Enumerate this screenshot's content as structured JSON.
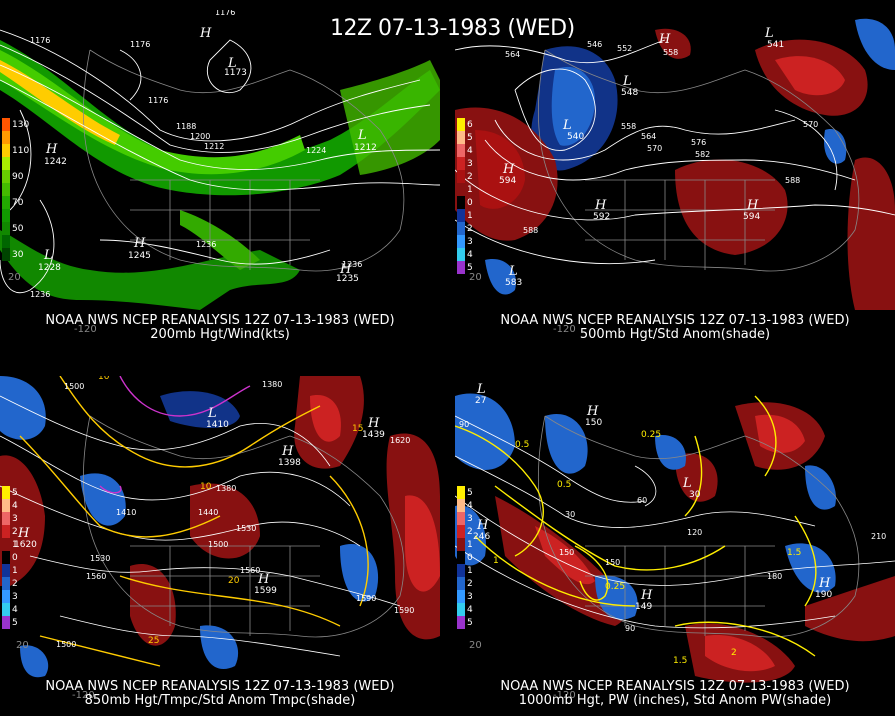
{
  "title": "12Z 07-13-1983 (WED)",
  "panels": {
    "p1": {
      "caption_line1": "NOAA NWS NCEP REANALYSIS 12Z 07-13-1983 (WED)",
      "caption_line2": "200mb Hgt/Wind(kts)",
      "lon_tick": "-120",
      "lat_tick": "20",
      "legend": [
        "130",
        "110",
        "90",
        "70",
        "50",
        "30"
      ],
      "legend_colors": [
        "#ff9900",
        "#ffcc00",
        "#aaee00",
        "#55cc00",
        "#22aa00",
        "#118800"
      ],
      "contours": [
        "1176",
        "1188",
        "1200",
        "1212",
        "1224",
        "1236"
      ],
      "extrema": [
        "H",
        "H",
        "L",
        "L",
        "H",
        "L",
        "H",
        "L",
        "L"
      ],
      "extrema_values": [
        "1242",
        "1245",
        "1228",
        "1236",
        "1212",
        "1176",
        "1173",
        "1176",
        "1235"
      ]
    },
    "p2": {
      "caption_line1": "NOAA NWS NCEP REANALYSIS 12Z 07-13-1983 (WED)",
      "caption_line2": "500mb Hgt/Std Anom(shade)",
      "lon_tick": "-120",
      "lat_tick": "20",
      "legend": [
        "6",
        "5",
        "4",
        "3",
        "2",
        "1",
        "0",
        "1",
        "2",
        "3",
        "4",
        "5"
      ],
      "legend_colors": [
        "#ffee00",
        "#ffbb88",
        "#ee6666",
        "#cc2222",
        "#aa1111",
        "#881111",
        "#000000",
        "#113399",
        "#2266cc",
        "#3399ff",
        "#33ccee",
        "#9933cc"
      ],
      "contours": [
        "546",
        "552",
        "558",
        "564",
        "570",
        "576",
        "582",
        "588"
      ],
      "extrema": [
        "L",
        "L",
        "H",
        "H",
        "H",
        "L",
        "H",
        "L"
      ],
      "extrema_values": [
        "540",
        "548",
        "594",
        "592",
        "594",
        "583",
        "562",
        "541"
      ]
    },
    "p3": {
      "caption_line1": "NOAA NWS NCEP REANALYSIS 12Z 07-13-1983 (WED)",
      "caption_line2": "850mb Hgt/Tmpc/Std Anom Tmpc(shade)",
      "lon_tick": "-120",
      "lat_tick": "20",
      "legend": [
        "5",
        "4",
        "3",
        "2",
        "1",
        "0",
        "1",
        "2",
        "3",
        "4",
        "5"
      ],
      "contours": [
        "1380",
        "1410",
        "1440",
        "1470",
        "1500",
        "1530",
        "1560",
        "1590",
        "1620"
      ],
      "temps": [
        "10",
        "15",
        "20",
        "25"
      ],
      "extrema": [
        "H",
        "H",
        "H",
        "L",
        "H"
      ],
      "extrema_values": [
        "1620",
        "1599",
        "1439",
        "1410",
        "1398"
      ]
    },
    "p4": {
      "caption_line1": "NOAA NWS NCEP REANALYSIS 12Z 07-13-1983 (WED)",
      "caption_line2": "1000mb Hgt, PW (inches), Std Anom PW(shade)",
      "lon_tick": "-120",
      "lat_tick": "20",
      "legend": [
        "5",
        "4",
        "3",
        "2",
        "1",
        "0",
        "1",
        "2",
        "3",
        "4",
        "5"
      ],
      "contours": [
        "30",
        "60",
        "90",
        "120",
        "150",
        "180",
        "210"
      ],
      "pw": [
        "0.25",
        "0.5",
        "1",
        "1.5",
        "2"
      ],
      "extrema": [
        "H",
        "H",
        "L",
        "H",
        "L",
        "H"
      ],
      "extrema_values": [
        "190",
        "246",
        "27",
        "150",
        "30",
        "149"
      ]
    }
  },
  "anomaly_legend_colors": [
    "#ffee00",
    "#ffbb88",
    "#ee6666",
    "#cc2222",
    "#881111",
    "#000000",
    "#113399",
    "#2266cc",
    "#3399ff",
    "#33ccee",
    "#9933cc"
  ]
}
